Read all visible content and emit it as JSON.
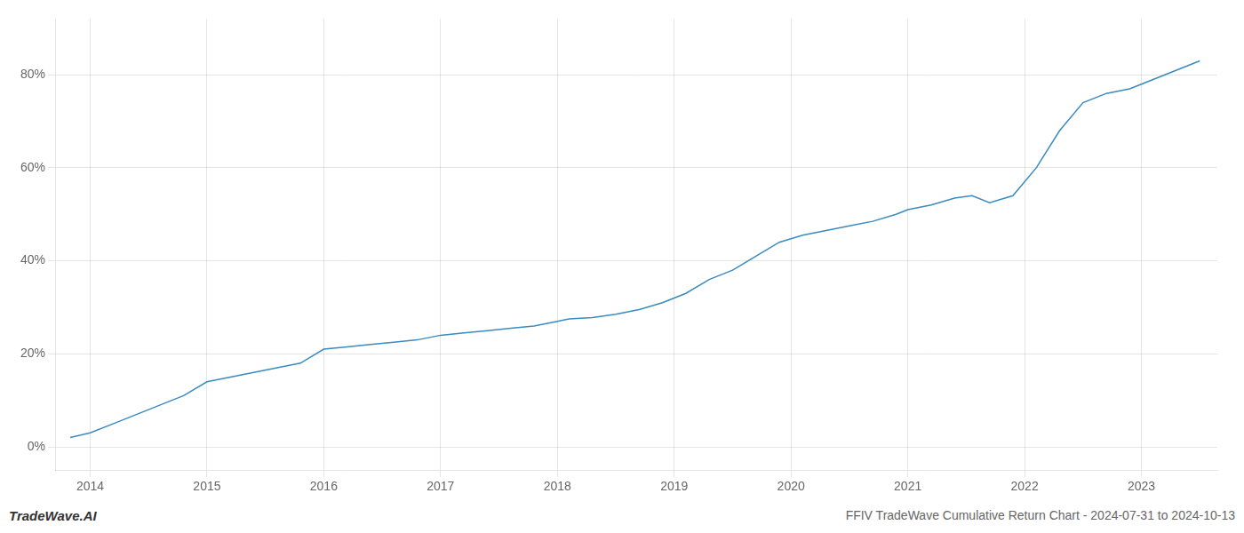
{
  "chart_data": {
    "type": "line",
    "title": "FFIV TradeWave Cumulative Return Chart - 2024-07-31 to 2024-10-13",
    "annotations": [
      "TradeWave.AI"
    ],
    "x": [
      2013.83,
      2014.0,
      2014.2,
      2014.4,
      2014.6,
      2014.8,
      2015.0,
      2015.2,
      2015.4,
      2015.6,
      2015.8,
      2016.0,
      2016.2,
      2016.4,
      2016.6,
      2016.8,
      2017.0,
      2017.2,
      2017.4,
      2017.6,
      2017.8,
      2018.0,
      2018.1,
      2018.3,
      2018.5,
      2018.7,
      2018.9,
      2019.1,
      2019.3,
      2019.5,
      2019.7,
      2019.9,
      2020.1,
      2020.3,
      2020.5,
      2020.7,
      2020.9,
      2021.0,
      2021.2,
      2021.4,
      2021.55,
      2021.7,
      2021.9,
      2022.1,
      2022.3,
      2022.5,
      2022.7,
      2022.9,
      2023.0,
      2023.2,
      2023.4,
      2023.5
    ],
    "values": [
      2,
      3,
      5,
      7,
      9,
      11,
      14,
      15,
      16,
      17,
      18,
      21,
      21.5,
      22,
      22.5,
      23,
      24,
      24.5,
      25,
      25.5,
      26,
      27,
      27.5,
      27.8,
      28.5,
      29.5,
      31,
      33,
      36,
      38,
      41,
      44,
      45.5,
      46.5,
      47.5,
      48.5,
      50,
      51,
      52,
      53.5,
      54,
      52.5,
      54,
      60,
      68,
      74,
      76,
      77,
      78,
      80,
      82,
      83
    ],
    "color": "#3a8bbf",
    "xlim": [
      2013.7,
      2023.65
    ],
    "xticks": [
      2014,
      2015,
      2016,
      2017,
      2018,
      2019,
      2020,
      2021,
      2022,
      2023
    ],
    "ylim": [
      -5,
      92
    ],
    "yticks": [
      {
        "value": 0,
        "label": "0%"
      },
      {
        "value": 20,
        "label": "20%"
      },
      {
        "value": 40,
        "label": "40%"
      },
      {
        "value": 60,
        "label": "60%"
      },
      {
        "value": 80,
        "label": "80%"
      }
    ],
    "grid": true
  }
}
